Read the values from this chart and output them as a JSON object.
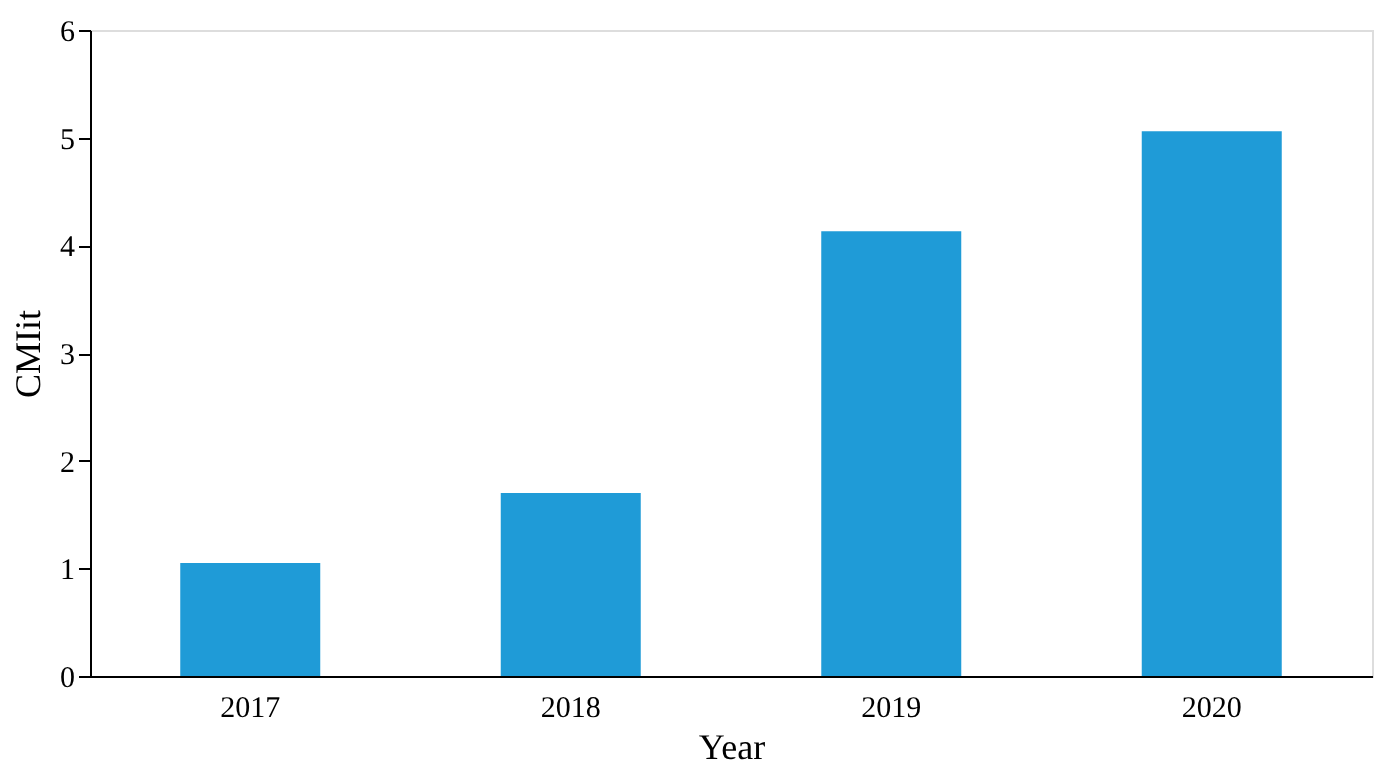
{
  "chart_data": {
    "type": "bar",
    "xlabel": "Year",
    "ylabel": "CMIit",
    "categories": [
      "2017",
      "2018",
      "2019",
      "2020"
    ],
    "values": [
      1.05,
      1.7,
      4.13,
      5.06
    ],
    "color": "#1f9bd7",
    "ylim": [
      0,
      6
    ],
    "yticks": [
      0,
      1,
      2,
      3,
      4,
      5,
      6
    ],
    "grid": false
  }
}
